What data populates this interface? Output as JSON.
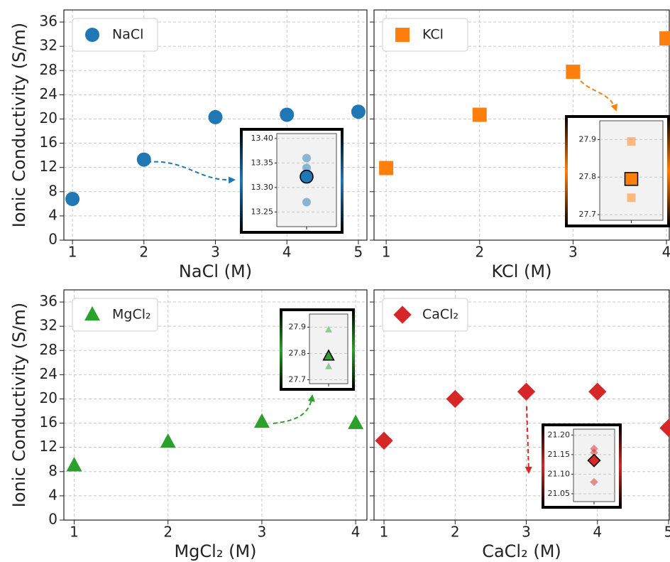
{
  "chart_data": [
    {
      "type": "scatter",
      "xlabel": "NaCl (M)",
      "ylabel": "Ionic Conductivity (S/m)",
      "marker": "circle",
      "series": [
        {
          "name": "NaCl",
          "color": "#1f77b4",
          "x": [
            1,
            2,
            3,
            4,
            5
          ],
          "values": [
            6.8,
            13.3,
            20.3,
            20.7,
            21.2
          ]
        }
      ],
      "xlim": [
        0.88,
        5.12
      ],
      "ylim": [
        0,
        38
      ],
      "xticks": [
        1,
        2,
        3,
        4,
        5
      ],
      "yticks": [
        0,
        4,
        8,
        12,
        16,
        20,
        24,
        28,
        32,
        36
      ],
      "grid": true,
      "inset": {
        "ylim": [
          13.22,
          13.41
        ],
        "yticks": [
          {
            "value": 13.25,
            "label": "13.25"
          },
          {
            "value": 13.3,
            "label": "13.30"
          },
          13.35,
          {
            "value": 13.4,
            "label": "13.40"
          }
        ],
        "points": [
          13.36,
          13.34,
          13.27
        ],
        "mean": 13.322
      }
    },
    {
      "type": "scatter",
      "xlabel": "KCl (M)",
      "marker": "square",
      "series": [
        {
          "name": "KCl",
          "color": "#ff7f0e",
          "x": [
            1,
            2,
            3,
            4
          ],
          "values": [
            11.9,
            20.7,
            27.8,
            33.3
          ]
        }
      ],
      "xlim": [
        0.87,
        4.03
      ],
      "ylim": [
        0,
        38
      ],
      "xticks": [
        1,
        2,
        3,
        4
      ],
      "yticks": [
        0,
        4,
        8,
        12,
        16,
        20,
        24,
        28,
        32,
        36
      ],
      "grid": true,
      "inset": {
        "ylim": [
          27.685,
          27.95
        ],
        "yticks": [
          27.7,
          27.8,
          27.9
        ],
        "points": [
          27.895,
          27.745
        ],
        "mean": 27.795
      }
    },
    {
      "type": "scatter",
      "xlabel": "MgCl₂ (M)",
      "ylabel": "Ionic Conductivity (S/m)",
      "marker": "triangle",
      "series": [
        {
          "name": "MgCl₂",
          "color": "#2ca02c",
          "x": [
            1,
            2,
            3,
            4
          ],
          "values": [
            9.0,
            12.9,
            16.2,
            16.0
          ]
        }
      ],
      "xlim": [
        0.89,
        4.12
      ],
      "ylim": [
        0,
        38
      ],
      "xticks": [
        1,
        2,
        3,
        4
      ],
      "yticks": [
        0,
        4,
        8,
        12,
        16,
        20,
        24,
        28,
        32,
        36
      ],
      "grid": true,
      "inset": {
        "ylim": [
          27.685,
          27.95
        ],
        "yticks": [
          27.7,
          27.8,
          27.9
        ],
        "points": [
          27.89,
          27.75
        ],
        "mean": 27.79
      }
    },
    {
      "type": "scatter",
      "xlabel": "CaCl₂ (M)",
      "marker": "diamond",
      "series": [
        {
          "name": "CaCl₂",
          "color": "#d62728",
          "x": [
            1,
            2,
            3,
            4,
            5
          ],
          "values": [
            13.1,
            20.0,
            21.2,
            21.2,
            15.2
          ]
        }
      ],
      "xlim": [
        0.86,
        5.01
      ],
      "ylim": [
        0,
        38
      ],
      "xticks": [
        1,
        2,
        3,
        4,
        5
      ],
      "yticks": [
        0,
        4,
        8,
        12,
        16,
        20,
        24,
        28,
        32,
        36
      ],
      "grid": true,
      "inset": {
        "ylim": [
          21.03,
          21.215
        ],
        "yticks": [
          21.05,
          {
            "value": 21.1,
            "label": "21.10"
          },
          21.15,
          {
            "value": 21.2,
            "label": "21.20"
          }
        ],
        "points": [
          21.165,
          21.155,
          21.08
        ],
        "mean": 21.135
      }
    }
  ]
}
